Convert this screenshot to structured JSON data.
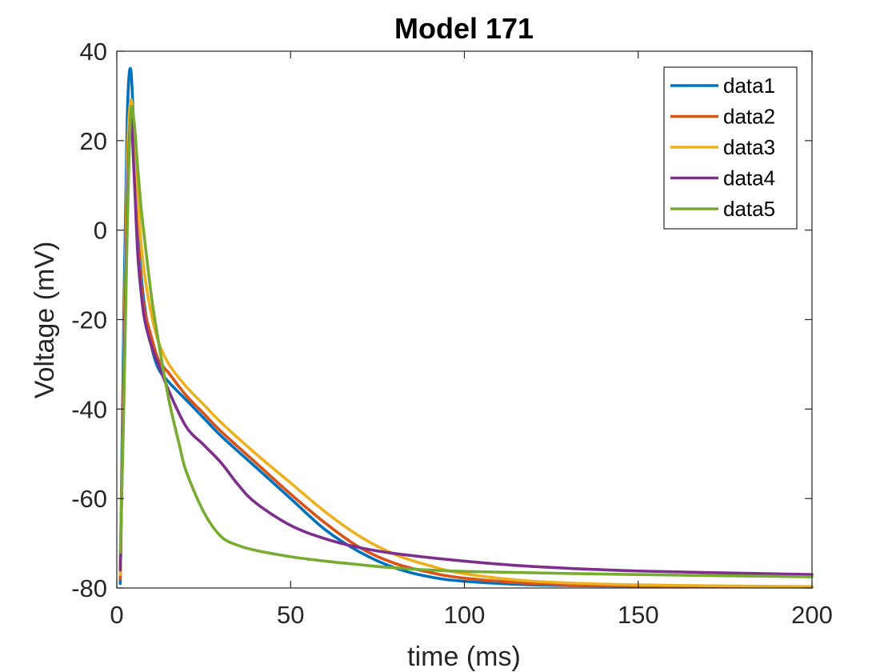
{
  "chart_data": {
    "type": "line",
    "title": "Model 171",
    "xlabel": "time (ms)",
    "ylabel": "Voltage (mV)",
    "xlim": [
      0,
      200
    ],
    "ylim": [
      -80,
      40
    ],
    "xticks": [
      "0",
      "50",
      "100",
      "150",
      "200"
    ],
    "yticks": [
      "-80",
      "-60",
      "-40",
      "-20",
      "0",
      "20",
      "40"
    ],
    "grid": false,
    "legend": {
      "position": "top-right"
    },
    "series": [
      {
        "name": "data1",
        "color": "#0072BD",
        "x": [
          1,
          2,
          3,
          4,
          5,
          6,
          7,
          8,
          10,
          12,
          15,
          20,
          25,
          30,
          40,
          50,
          60,
          70,
          80,
          90,
          100,
          120,
          150,
          200
        ],
        "y": [
          -79,
          -20,
          25,
          36,
          20,
          0,
          -10,
          -17,
          -26,
          -31,
          -34,
          -38,
          -42,
          -46,
          -53,
          -60,
          -67,
          -72,
          -75.5,
          -77.5,
          -78.5,
          -79.3,
          -79.6,
          -79.8
        ]
      },
      {
        "name": "data2",
        "color": "#D95319",
        "x": [
          1,
          2,
          3,
          4,
          5,
          6,
          7,
          8,
          10,
          12,
          15,
          20,
          25,
          30,
          40,
          50,
          60,
          70,
          80,
          90,
          100,
          120,
          150,
          200
        ],
        "y": [
          -78,
          -30,
          10,
          27,
          15,
          -2,
          -12,
          -18,
          -24,
          -29,
          -32,
          -37,
          -41,
          -45,
          -52,
          -59,
          -65.5,
          -71,
          -74.5,
          -76.5,
          -77.8,
          -79,
          -79.6,
          -79.8
        ]
      },
      {
        "name": "data3",
        "color": "#EDB120",
        "x": [
          1,
          2,
          3,
          4,
          5,
          6,
          7,
          8,
          10,
          12,
          15,
          20,
          25,
          30,
          40,
          50,
          60,
          70,
          80,
          90,
          100,
          120,
          150,
          200
        ],
        "y": [
          -77,
          -30,
          15,
          29,
          22,
          8,
          -3,
          -10,
          -19,
          -25,
          -30,
          -35,
          -39,
          -43,
          -50,
          -56.5,
          -63,
          -68.5,
          -72.5,
          -75,
          -76.8,
          -78.5,
          -79.3,
          -79.7
        ]
      },
      {
        "name": "data4",
        "color": "#7E2F8E",
        "x": [
          1,
          2,
          3,
          4,
          5,
          6,
          7,
          8,
          10,
          12,
          15,
          20,
          25,
          30,
          35,
          40,
          50,
          60,
          70,
          80,
          100,
          120,
          150,
          200
        ],
        "y": [
          -76,
          -35,
          5,
          25,
          12,
          -5,
          -14,
          -20,
          -26,
          -30,
          -36,
          -44,
          -48,
          -52,
          -57,
          -61,
          -66,
          -69,
          -71,
          -72.3,
          -74,
          -75.2,
          -76.2,
          -77
        ]
      },
      {
        "name": "data5",
        "color": "#77AC30",
        "x": [
          1,
          2,
          3,
          4,
          5,
          6,
          7,
          8,
          10,
          12,
          15,
          18,
          20,
          25,
          30,
          35,
          40,
          50,
          60,
          70,
          80,
          100,
          150,
          200
        ],
        "y": [
          -72,
          -40,
          0,
          26,
          24,
          14,
          5,
          -2,
          -15,
          -25,
          -38,
          -48,
          -54,
          -63,
          -68.5,
          -70.5,
          -71.6,
          -73,
          -74,
          -74.8,
          -75.5,
          -76.3,
          -77,
          -77.5
        ]
      }
    ]
  }
}
